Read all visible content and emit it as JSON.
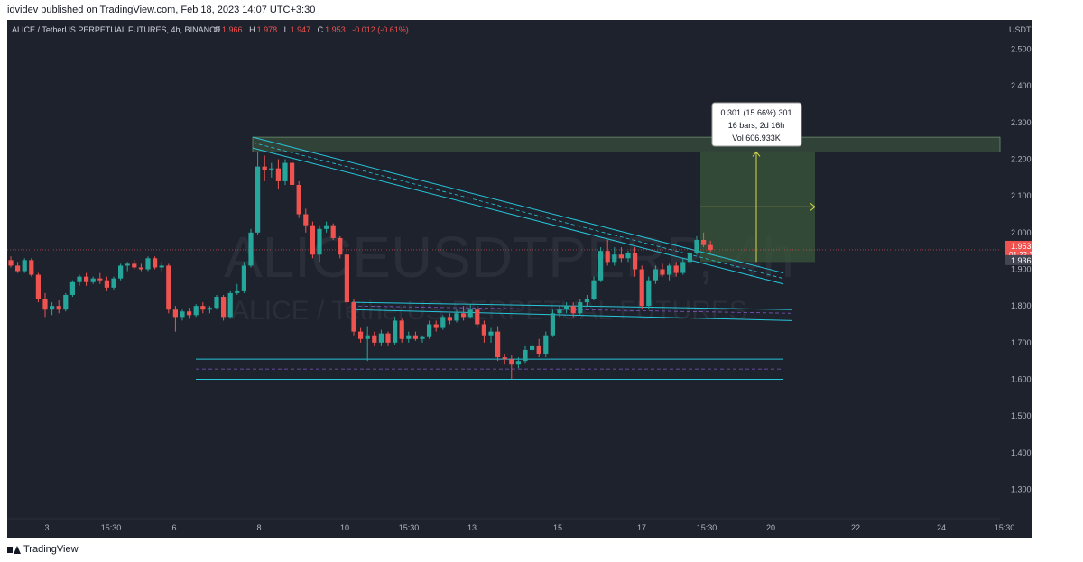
{
  "header": {
    "published_text": "idvidev published on TradingView.com, Feb 18, 2023 14:07 UTC+3:30"
  },
  "symbol": {
    "title": "ALICE / TetherUS PERPETUAL FUTURES, 4h, BINANCE",
    "o_label": "O",
    "o_value": "1.966",
    "h_label": "H",
    "h_value": "1.978",
    "l_label": "L",
    "l_value": "1.947",
    "c_label": "C",
    "c_value": "1.953",
    "change": "-0.012 (-0.61%)"
  },
  "watermark": {
    "line1": "ALICEUSDTPERP, 4h",
    "line2": "ALICE / TetherUS PERPETUAL FUTURES"
  },
  "price_axis": {
    "currency": "USDT",
    "ticks": [
      "2.500",
      "2.400",
      "2.300",
      "2.200",
      "2.100",
      "2.000",
      "1.900",
      "1.800",
      "1.700",
      "1.600",
      "1.500",
      "1.400",
      "1.300"
    ],
    "last_price_label": "1.953",
    "countdown_label": "01:22:37",
    "secondary_label": "1.936"
  },
  "measure_box": {
    "line1": "0.301 (15.66%) 301",
    "line2": "16 bars, 2d 16h",
    "line3": "Vol 606.933K"
  },
  "footer": {
    "brand": "TradingView"
  },
  "colors": {
    "background": "#1e222d",
    "up": "#26a69a",
    "down": "#ef5350",
    "trendline": "#26c6da",
    "zone": "#3c5a3c",
    "measure": "#d8d84a",
    "text": "#b2b5be"
  },
  "chart_data": {
    "type": "candlestick",
    "timeframe": "4h",
    "x_ticks": [
      "3",
      "15:30",
      "6",
      "8",
      "10",
      "15:30",
      "13",
      "15",
      "17",
      "15:30",
      "20",
      "22",
      "24",
      "15:30"
    ],
    "y_range": [
      1.22,
      2.58
    ],
    "candles": [
      {
        "o": 1.925,
        "h": 1.935,
        "l": 1.905,
        "c": 1.91
      },
      {
        "o": 1.91,
        "h": 1.92,
        "l": 1.89,
        "c": 1.895
      },
      {
        "o": 1.895,
        "h": 1.93,
        "l": 1.89,
        "c": 1.925
      },
      {
        "o": 1.925,
        "h": 1.93,
        "l": 1.88,
        "c": 1.885
      },
      {
        "o": 1.885,
        "h": 1.89,
        "l": 1.81,
        "c": 1.82
      },
      {
        "o": 1.82,
        "h": 1.835,
        "l": 1.77,
        "c": 1.79
      },
      {
        "o": 1.79,
        "h": 1.81,
        "l": 1.775,
        "c": 1.8
      },
      {
        "o": 1.8,
        "h": 1.815,
        "l": 1.78,
        "c": 1.79
      },
      {
        "o": 1.79,
        "h": 1.835,
        "l": 1.785,
        "c": 1.83
      },
      {
        "o": 1.83,
        "h": 1.87,
        "l": 1.825,
        "c": 1.865
      },
      {
        "o": 1.865,
        "h": 1.885,
        "l": 1.855,
        "c": 1.88
      },
      {
        "o": 1.88,
        "h": 1.89,
        "l": 1.855,
        "c": 1.865
      },
      {
        "o": 1.865,
        "h": 1.88,
        "l": 1.86,
        "c": 1.875
      },
      {
        "o": 1.875,
        "h": 1.89,
        "l": 1.86,
        "c": 1.87
      },
      {
        "o": 1.87,
        "h": 1.88,
        "l": 1.84,
        "c": 1.85
      },
      {
        "o": 1.85,
        "h": 1.88,
        "l": 1.845,
        "c": 1.875
      },
      {
        "o": 1.875,
        "h": 1.915,
        "l": 1.87,
        "c": 1.91
      },
      {
        "o": 1.91,
        "h": 1.92,
        "l": 1.895,
        "c": 1.915
      },
      {
        "o": 1.915,
        "h": 1.925,
        "l": 1.9,
        "c": 1.905
      },
      {
        "o": 1.905,
        "h": 1.915,
        "l": 1.895,
        "c": 1.9
      },
      {
        "o": 1.9,
        "h": 1.935,
        "l": 1.895,
        "c": 1.93
      },
      {
        "o": 1.93,
        "h": 1.935,
        "l": 1.9,
        "c": 1.905
      },
      {
        "o": 1.905,
        "h": 1.92,
        "l": 1.895,
        "c": 1.91
      },
      {
        "o": 1.91,
        "h": 1.915,
        "l": 1.78,
        "c": 1.79
      },
      {
        "o": 1.79,
        "h": 1.8,
        "l": 1.73,
        "c": 1.77
      },
      {
        "o": 1.77,
        "h": 1.79,
        "l": 1.76,
        "c": 1.785
      },
      {
        "o": 1.785,
        "h": 1.795,
        "l": 1.765,
        "c": 1.775
      },
      {
        "o": 1.775,
        "h": 1.805,
        "l": 1.77,
        "c": 1.8
      },
      {
        "o": 1.8,
        "h": 1.81,
        "l": 1.78,
        "c": 1.79
      },
      {
        "o": 1.79,
        "h": 1.8,
        "l": 1.78,
        "c": 1.795
      },
      {
        "o": 1.795,
        "h": 1.83,
        "l": 1.79,
        "c": 1.825
      },
      {
        "o": 1.825,
        "h": 1.83,
        "l": 1.76,
        "c": 1.77
      },
      {
        "o": 1.77,
        "h": 1.84,
        "l": 1.765,
        "c": 1.835
      },
      {
        "o": 1.835,
        "h": 1.86,
        "l": 1.83,
        "c": 1.84
      },
      {
        "o": 1.84,
        "h": 1.92,
        "l": 1.835,
        "c": 1.91
      },
      {
        "o": 1.91,
        "h": 2.01,
        "l": 1.905,
        "c": 2.0
      },
      {
        "o": 2.0,
        "h": 2.22,
        "l": 1.995,
        "c": 2.18
      },
      {
        "o": 2.18,
        "h": 2.21,
        "l": 2.14,
        "c": 2.17
      },
      {
        "o": 2.17,
        "h": 2.19,
        "l": 2.15,
        "c": 2.175
      },
      {
        "o": 2.175,
        "h": 2.2,
        "l": 2.12,
        "c": 2.14
      },
      {
        "o": 2.14,
        "h": 2.2,
        "l": 2.13,
        "c": 2.19
      },
      {
        "o": 2.19,
        "h": 2.2,
        "l": 2.12,
        "c": 2.13
      },
      {
        "o": 2.13,
        "h": 2.14,
        "l": 2.04,
        "c": 2.05
      },
      {
        "o": 2.05,
        "h": 2.065,
        "l": 2.0,
        "c": 2.02
      },
      {
        "o": 2.02,
        "h": 2.03,
        "l": 1.93,
        "c": 1.94
      },
      {
        "o": 1.94,
        "h": 2.02,
        "l": 1.92,
        "c": 2.01
      },
      {
        "o": 2.01,
        "h": 2.03,
        "l": 2.0,
        "c": 2.02
      },
      {
        "o": 2.02,
        "h": 2.025,
        "l": 1.98,
        "c": 1.985
      },
      {
        "o": 1.985,
        "h": 1.99,
        "l": 1.93,
        "c": 1.94
      },
      {
        "o": 1.94,
        "h": 1.95,
        "l": 1.79,
        "c": 1.81
      },
      {
        "o": 1.81,
        "h": 1.82,
        "l": 1.72,
        "c": 1.73
      },
      {
        "o": 1.73,
        "h": 1.74,
        "l": 1.7,
        "c": 1.71
      },
      {
        "o": 1.71,
        "h": 1.745,
        "l": 1.65,
        "c": 1.72
      },
      {
        "o": 1.72,
        "h": 1.73,
        "l": 1.69,
        "c": 1.7
      },
      {
        "o": 1.7,
        "h": 1.735,
        "l": 1.69,
        "c": 1.725
      },
      {
        "o": 1.725,
        "h": 1.73,
        "l": 1.69,
        "c": 1.7
      },
      {
        "o": 1.7,
        "h": 1.77,
        "l": 1.695,
        "c": 1.76
      },
      {
        "o": 1.76,
        "h": 1.765,
        "l": 1.7,
        "c": 1.71
      },
      {
        "o": 1.71,
        "h": 1.73,
        "l": 1.7,
        "c": 1.72
      },
      {
        "o": 1.72,
        "h": 1.73,
        "l": 1.705,
        "c": 1.71
      },
      {
        "o": 1.71,
        "h": 1.72,
        "l": 1.7,
        "c": 1.715
      },
      {
        "o": 1.715,
        "h": 1.76,
        "l": 1.71,
        "c": 1.75
      },
      {
        "o": 1.75,
        "h": 1.76,
        "l": 1.73,
        "c": 1.74
      },
      {
        "o": 1.74,
        "h": 1.775,
        "l": 1.735,
        "c": 1.77
      },
      {
        "o": 1.77,
        "h": 1.78,
        "l": 1.75,
        "c": 1.76
      },
      {
        "o": 1.76,
        "h": 1.79,
        "l": 1.755,
        "c": 1.78
      },
      {
        "o": 1.78,
        "h": 1.8,
        "l": 1.76,
        "c": 1.77
      },
      {
        "o": 1.77,
        "h": 1.805,
        "l": 1.765,
        "c": 1.79
      },
      {
        "o": 1.79,
        "h": 1.8,
        "l": 1.74,
        "c": 1.75
      },
      {
        "o": 1.75,
        "h": 1.76,
        "l": 1.7,
        "c": 1.72
      },
      {
        "o": 1.72,
        "h": 1.74,
        "l": 1.7,
        "c": 1.73
      },
      {
        "o": 1.73,
        "h": 1.745,
        "l": 1.65,
        "c": 1.66
      },
      {
        "o": 1.66,
        "h": 1.67,
        "l": 1.64,
        "c": 1.655
      },
      {
        "o": 1.655,
        "h": 1.665,
        "l": 1.6,
        "c": 1.64
      },
      {
        "o": 1.64,
        "h": 1.66,
        "l": 1.63,
        "c": 1.65
      },
      {
        "o": 1.65,
        "h": 1.69,
        "l": 1.645,
        "c": 1.68
      },
      {
        "o": 1.68,
        "h": 1.7,
        "l": 1.67,
        "c": 1.69
      },
      {
        "o": 1.69,
        "h": 1.71,
        "l": 1.66,
        "c": 1.67
      },
      {
        "o": 1.67,
        "h": 1.73,
        "l": 1.66,
        "c": 1.72
      },
      {
        "o": 1.72,
        "h": 1.79,
        "l": 1.715,
        "c": 1.78
      },
      {
        "o": 1.78,
        "h": 1.8,
        "l": 1.77,
        "c": 1.79
      },
      {
        "o": 1.79,
        "h": 1.81,
        "l": 1.78,
        "c": 1.8
      },
      {
        "o": 1.8,
        "h": 1.81,
        "l": 1.77,
        "c": 1.78
      },
      {
        "o": 1.78,
        "h": 1.82,
        "l": 1.775,
        "c": 1.81
      },
      {
        "o": 1.81,
        "h": 1.83,
        "l": 1.8,
        "c": 1.82
      },
      {
        "o": 1.82,
        "h": 1.88,
        "l": 1.815,
        "c": 1.87
      },
      {
        "o": 1.87,
        "h": 1.96,
        "l": 1.865,
        "c": 1.95
      },
      {
        "o": 1.95,
        "h": 1.98,
        "l": 1.91,
        "c": 1.92
      },
      {
        "o": 1.92,
        "h": 1.96,
        "l": 1.91,
        "c": 1.94
      },
      {
        "o": 1.94,
        "h": 1.96,
        "l": 1.92,
        "c": 1.93
      },
      {
        "o": 1.93,
        "h": 1.95,
        "l": 1.92,
        "c": 1.945
      },
      {
        "o": 1.945,
        "h": 1.96,
        "l": 1.88,
        "c": 1.9
      },
      {
        "o": 1.9,
        "h": 1.91,
        "l": 1.79,
        "c": 1.8
      },
      {
        "o": 1.8,
        "h": 1.88,
        "l": 1.79,
        "c": 1.87
      },
      {
        "o": 1.87,
        "h": 1.91,
        "l": 1.86,
        "c": 1.9
      },
      {
        "o": 1.9,
        "h": 1.915,
        "l": 1.88,
        "c": 1.885
      },
      {
        "o": 1.885,
        "h": 1.915,
        "l": 1.87,
        "c": 1.91
      },
      {
        "o": 1.91,
        "h": 1.92,
        "l": 1.88,
        "c": 1.89
      },
      {
        "o": 1.89,
        "h": 1.93,
        "l": 1.885,
        "c": 1.92
      },
      {
        "o": 1.92,
        "h": 1.95,
        "l": 1.91,
        "c": 1.945
      },
      {
        "o": 1.945,
        "h": 1.99,
        "l": 1.94,
        "c": 1.98
      },
      {
        "o": 1.98,
        "h": 2.0,
        "l": 1.96,
        "c": 1.966
      },
      {
        "o": 1.966,
        "h": 1.978,
        "l": 1.947,
        "c": 1.953
      }
    ],
    "annotations": {
      "descending_channel": {
        "start_price": 2.26,
        "end_price_upper": 1.89,
        "end_price_lower": 1.86
      },
      "resistance_zone": [
        2.22,
        2.26
      ],
      "support_channel_mid": [
        1.8,
        1.77
      ],
      "support_channel_low": [
        1.655,
        1.6
      ],
      "last_price_line": 1.953
    }
  }
}
